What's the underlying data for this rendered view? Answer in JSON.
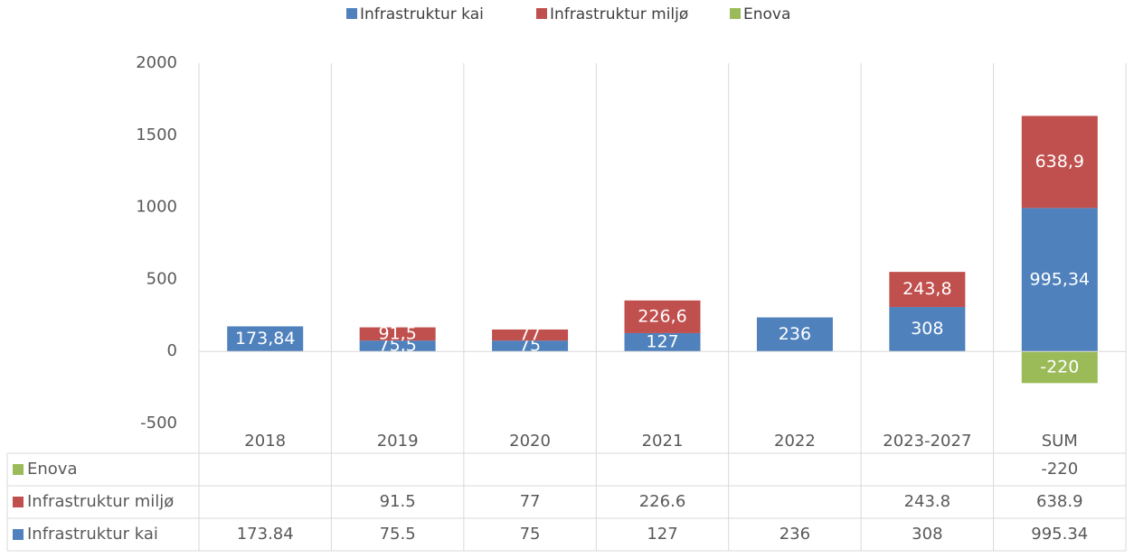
{
  "chart_data": {
    "type": "stacked_bar",
    "categories": [
      "2018",
      "2019",
      "2020",
      "2021",
      "2022",
      "2023-2027",
      "SUM"
    ],
    "series": [
      {
        "name": "Infrastruktur kai",
        "color": "#4f81bd",
        "values": [
          173.84,
          75.5,
          75,
          127,
          236,
          308,
          995.34
        ],
        "value_labels": [
          "173,84",
          "75,5",
          "75",
          "127",
          "236",
          "308",
          "995,34"
        ]
      },
      {
        "name": "Infrastruktur miljø",
        "color": "#c0504d",
        "values": [
          null,
          91.5,
          77,
          226.6,
          null,
          243.8,
          638.9
        ],
        "value_labels": [
          null,
          "91,5",
          "77",
          "226,6",
          null,
          "243,8",
          "638,9"
        ]
      },
      {
        "name": "Enova",
        "color": "#9bbb59",
        "values": [
          null,
          null,
          null,
          null,
          null,
          null,
          -220
        ],
        "value_labels": [
          null,
          null,
          null,
          null,
          null,
          null,
          "-220"
        ]
      }
    ],
    "ylim": [
      -500,
      2000
    ],
    "yticks": [
      -500,
      0,
      500,
      1000,
      1500,
      2000
    ],
    "legend": "top",
    "data_table": true
  }
}
